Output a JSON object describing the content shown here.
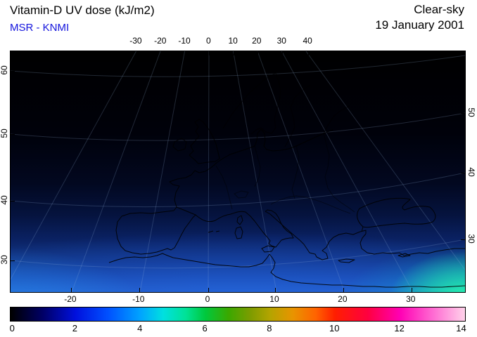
{
  "header": {
    "title": "Vitamin-D UV dose (kJ/m2)",
    "source": "MSR - KNMI",
    "condition": "Clear-sky",
    "date": "19 January 2001"
  },
  "colors": {
    "title_text": "#000000",
    "source_text": "#1414dd",
    "map_border": "#000000",
    "background": "#ffffff"
  },
  "chart_data": {
    "type": "heatmap",
    "title": "Vitamin-D UV dose (kJ/m2)",
    "source": "MSR - KNMI",
    "condition": "Clear-sky",
    "date": "19 January 2001",
    "region": "Europe, Mediterranean and North Africa",
    "units": "kJ/m2",
    "projection_note": "conic-style map; longitude labels on top/bottom axes, rotated latitude labels on left/right axes; graticule faintly visible over ocean",
    "axes": {
      "top": {
        "title": "longitude (deg E)",
        "ticks": [
          {
            "label": "-30",
            "pos": 27.7
          },
          {
            "label": "-20",
            "pos": 33.1
          },
          {
            "label": "-10",
            "pos": 38.4
          },
          {
            "label": "0",
            "pos": 43.7
          },
          {
            "label": "10",
            "pos": 49.1
          },
          {
            "label": "20",
            "pos": 54.3
          },
          {
            "label": "30",
            "pos": 59.8
          },
          {
            "label": "40",
            "pos": 65.5
          }
        ]
      },
      "bottom": {
        "title": "longitude (deg E)",
        "ticks": [
          {
            "label": "-20",
            "pos": 13.3
          },
          {
            "label": "-10",
            "pos": 28.3
          },
          {
            "label": "0",
            "pos": 43.5
          },
          {
            "label": "10",
            "pos": 58.2
          },
          {
            "label": "20",
            "pos": 73.2
          },
          {
            "label": "30",
            "pos": 88.2
          }
        ]
      },
      "left": {
        "title": "latitude (deg N)",
        "ticks": [
          {
            "label": "60",
            "pos": 8.2
          },
          {
            "label": "50",
            "pos": 34.4
          },
          {
            "label": "40",
            "pos": 62.1
          },
          {
            "label": "30",
            "pos": 86.9
          }
        ]
      },
      "right": {
        "title": "latitude (deg N)",
        "ticks": [
          {
            "label": "50",
            "pos": 25.7
          },
          {
            "label": "40",
            "pos": 50.4
          },
          {
            "label": "30",
            "pos": 78.1
          }
        ]
      }
    },
    "colorbar": {
      "min": 0,
      "max": 14,
      "units": "kJ/m2",
      "ticks": [
        {
          "label": "0",
          "pos": 0.5
        },
        {
          "label": "2",
          "pos": 14.3
        },
        {
          "label": "4",
          "pos": 28.6
        },
        {
          "label": "6",
          "pos": 42.9
        },
        {
          "label": "8",
          "pos": 57.1
        },
        {
          "label": "10",
          "pos": 71.4
        },
        {
          "label": "12",
          "pos": 85.7
        },
        {
          "label": "14",
          "pos": 99.3
        }
      ],
      "stops": [
        {
          "value": 0,
          "color": "#000000"
        },
        {
          "value": 1,
          "color": "#000066"
        },
        {
          "value": 2,
          "color": "#0010dd"
        },
        {
          "value": 3,
          "color": "#0050ff"
        },
        {
          "value": 4,
          "color": "#00a4ff"
        },
        {
          "value": 4.7,
          "color": "#00e0e0"
        },
        {
          "value": 5.4,
          "color": "#00e296"
        },
        {
          "value": 6,
          "color": "#00c83c"
        },
        {
          "value": 6.7,
          "color": "#3aa800"
        },
        {
          "value": 7.4,
          "color": "#7e9c00"
        },
        {
          "value": 8,
          "color": "#b4a400"
        },
        {
          "value": 8.7,
          "color": "#e89400"
        },
        {
          "value": 9.4,
          "color": "#ff6400"
        },
        {
          "value": 10,
          "color": "#ff1e00"
        },
        {
          "value": 11,
          "color": "#ff0040"
        },
        {
          "value": 12,
          "color": "#ff00b4"
        },
        {
          "value": 13,
          "color": "#ff6ad2"
        },
        {
          "value": 14,
          "color": "#ffd2ea"
        }
      ]
    },
    "field": {
      "description": "Clear-sky vitamin-D weighted UV daily dose; near 0 kJ/m2 (black) north of ~55N, increasing southward through dark blue and blue to cyan along the North African coast; brightest cyan-green patch in the far south-east corner of the map.",
      "approx_dose_by_latitude": [
        {
          "lat_deg_N": 60,
          "dose_kJ_m2": 0.1
        },
        {
          "lat_deg_N": 55,
          "dose_kJ_m2": 0.3
        },
        {
          "lat_deg_N": 50,
          "dose_kJ_m2": 0.6
        },
        {
          "lat_deg_N": 45,
          "dose_kJ_m2": 1.0
        },
        {
          "lat_deg_N": 40,
          "dose_kJ_m2": 1.6
        },
        {
          "lat_deg_N": 35,
          "dose_kJ_m2": 2.4
        },
        {
          "lat_deg_N": 30,
          "dose_kJ_m2": 3.2
        }
      ],
      "max_region": {
        "approx_lon_deg_E": 35,
        "approx_lat_deg_N": 30,
        "dose_kJ_m2": 5
      }
    }
  }
}
